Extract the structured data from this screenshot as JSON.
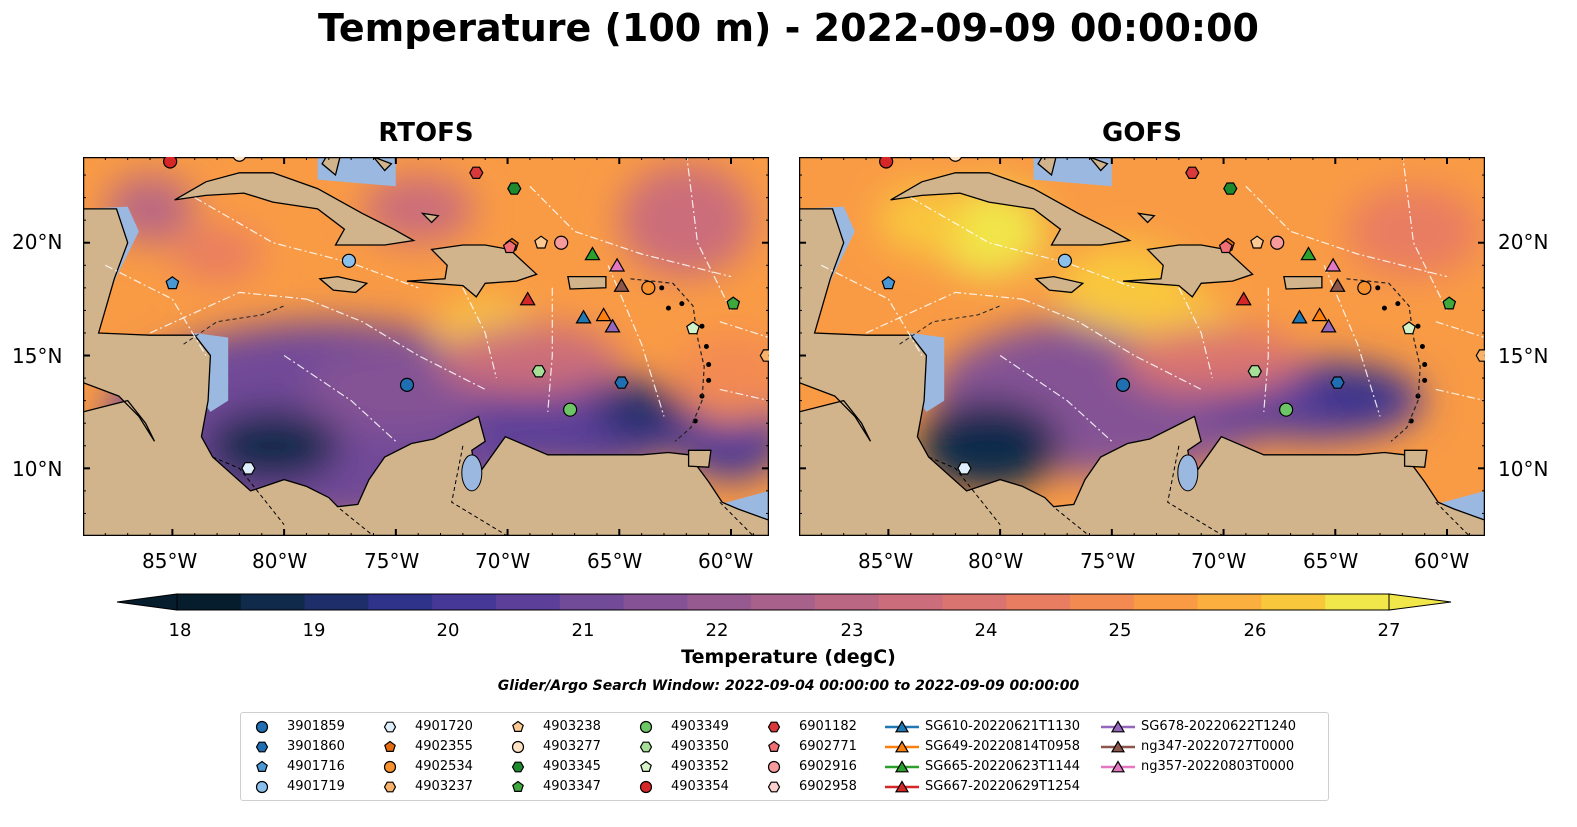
{
  "title": "Temperature (100 m) - 2022-09-09 00:00:00",
  "panels": [
    {
      "title": "RTOFS"
    },
    {
      "title": "GOFS"
    }
  ],
  "axes": {
    "lon_ticks": [
      "85°W",
      "80°W",
      "75°W",
      "70°W",
      "65°W",
      "60°W"
    ],
    "lat_ticks": [
      "20°N",
      "15°N",
      "10°N"
    ],
    "lon_range": [
      -89,
      -58.3
    ],
    "lat_range": [
      7,
      23.8
    ]
  },
  "colors": {
    "land": "#d2b48c",
    "shallow_water": "#9ab8e0",
    "colormap": [
      "#061d2e",
      "#102a4c",
      "#1e2e6a",
      "#30338a",
      "#463896",
      "#5c3f98",
      "#714a98",
      "#845295",
      "#965a90",
      "#a8618a",
      "#ba6783",
      "#cb6d7a",
      "#da7470",
      "#e87d62",
      "#f38a52",
      "#f99b45",
      "#fbaf3e",
      "#f9c73c",
      "#f1e64a"
    ]
  },
  "colorbar": {
    "ticks": [
      "18",
      "19",
      "20",
      "21",
      "22",
      "23",
      "24",
      "25",
      "26",
      "27"
    ],
    "label": "Temperature (degC)",
    "min": 18,
    "max": 27
  },
  "search_window": "Glider/Argo Search Window: 2022-09-04 00:00:00 to 2022-09-09 00:00:00",
  "legend": {
    "columns": [
      [
        {
          "label": "3901859",
          "marker": "circle",
          "color": "#1f6fb2"
        },
        {
          "label": "3901860",
          "marker": "hexagon",
          "color": "#1f6fb2"
        },
        {
          "label": "4901716",
          "marker": "pentagon",
          "color": "#4a97d6"
        },
        {
          "label": "4901719",
          "marker": "circle",
          "color": "#8cc0ec"
        }
      ],
      [
        {
          "label": "4901720",
          "marker": "hexagon",
          "color": "#dfeefc"
        },
        {
          "label": "4902355",
          "marker": "pentagon",
          "color": "#e56b10"
        },
        {
          "label": "4902534",
          "marker": "circle",
          "color": "#f7902e"
        },
        {
          "label": "4903237",
          "marker": "hexagon",
          "color": "#f9b26a"
        }
      ],
      [
        {
          "label": "4903238",
          "marker": "pentagon",
          "color": "#fbc991"
        },
        {
          "label": "4903277",
          "marker": "circle",
          "color": "#fde2c4"
        },
        {
          "label": "4903345",
          "marker": "hexagon",
          "color": "#1e8a2e"
        },
        {
          "label": "4903347",
          "marker": "pentagon",
          "color": "#3fa83c"
        }
      ],
      [
        {
          "label": "4903349",
          "marker": "circle",
          "color": "#6cc665"
        },
        {
          "label": "4903350",
          "marker": "hexagon",
          "color": "#a6df98"
        },
        {
          "label": "4903352",
          "marker": "pentagon",
          "color": "#d4f2c8"
        },
        {
          "label": "4903354",
          "marker": "circle",
          "color": "#d62728"
        }
      ],
      [
        {
          "label": "6901182",
          "marker": "hexagon",
          "color": "#d9393b"
        },
        {
          "label": "6902771",
          "marker": "pentagon",
          "color": "#ef6f74"
        },
        {
          "label": "6902916",
          "marker": "circle",
          "color": "#f79a9c"
        },
        {
          "label": "6902958",
          "marker": "hexagon",
          "color": "#fcd0cf"
        }
      ],
      [
        {
          "label": "SG610-20220621T1130",
          "marker": "triangle",
          "color": "#1f77b4"
        },
        {
          "label": "SG649-20220814T0958",
          "marker": "triangle",
          "color": "#ff7f0e"
        },
        {
          "label": "SG665-20220623T1144",
          "marker": "triangle",
          "color": "#2ca02c"
        },
        {
          "label": "SG667-20220629T1254",
          "marker": "triangle",
          "color": "#d62728"
        }
      ],
      [
        {
          "label": "SG678-20220622T1240",
          "marker": "triangle",
          "color": "#9467bd"
        },
        {
          "label": "ng347-20220727T0000",
          "marker": "triangle",
          "color": "#8c564b"
        },
        {
          "label": "ng357-20220803T0000",
          "marker": "triangle",
          "color": "#e377c2"
        }
      ]
    ]
  },
  "observations": [
    {
      "id": "3901859",
      "lon": -74.5,
      "lat": 13.7
    },
    {
      "id": "3901860",
      "lon": -64.9,
      "lat": 13.8
    },
    {
      "id": "4901716",
      "lon": -85.0,
      "lat": 18.2
    },
    {
      "id": "4901719",
      "lon": -77.1,
      "lat": 19.2
    },
    {
      "id": "4901720",
      "lon": -81.6,
      "lat": 10.0
    },
    {
      "id": "4902355",
      "lon": -69.8,
      "lat": 19.9
    },
    {
      "id": "4902534",
      "lon": -63.7,
      "lat": 18.0
    },
    {
      "id": "4903237",
      "lon": -58.4,
      "lat": 15.0
    },
    {
      "id": "4903238",
      "lon": -68.5,
      "lat": 20.0
    },
    {
      "id": "4903277",
      "lon": -82.0,
      "lat": 23.9
    },
    {
      "id": "4903345",
      "lon": -69.7,
      "lat": 22.4
    },
    {
      "id": "4903347",
      "lon": -59.9,
      "lat": 17.3
    },
    {
      "id": "4903349",
      "lon": -67.2,
      "lat": 12.6
    },
    {
      "id": "4903350",
      "lon": -68.6,
      "lat": 14.3
    },
    {
      "id": "4903352",
      "lon": -61.7,
      "lat": 16.2
    },
    {
      "id": "4903354",
      "lon": -85.1,
      "lat": 23.6
    },
    {
      "id": "6901182",
      "lon": -71.4,
      "lat": 23.1
    },
    {
      "id": "6902771",
      "lon": -69.9,
      "lat": 19.8
    },
    {
      "id": "6902916",
      "lon": -67.6,
      "lat": 20.0
    },
    {
      "id": "6902958",
      "lon": -58.0,
      "lat": 15.0
    },
    {
      "id": "SG610-20220621T1130",
      "lon": -66.6,
      "lat": 16.7
    },
    {
      "id": "SG649-20220814T0958",
      "lon": -65.7,
      "lat": 16.8
    },
    {
      "id": "SG665-20220623T1144",
      "lon": -66.2,
      "lat": 19.5
    },
    {
      "id": "SG667-20220629T1254",
      "lon": -69.1,
      "lat": 17.5
    },
    {
      "id": "SG678-20220622T1240",
      "lon": -65.3,
      "lat": 16.3
    },
    {
      "id": "ng347-20220727T0000",
      "lon": -64.9,
      "lat": 18.1
    },
    {
      "id": "ng357-20220803T0000",
      "lon": -65.1,
      "lat": 19.0
    }
  ]
}
